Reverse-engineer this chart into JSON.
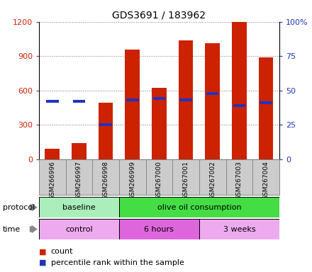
{
  "title": "GDS3691 / 183962",
  "samples": [
    "GSM266996",
    "GSM266997",
    "GSM266998",
    "GSM266999",
    "GSM267000",
    "GSM267001",
    "GSM267002",
    "GSM267003",
    "GSM267004"
  ],
  "count_values": [
    90,
    140,
    490,
    960,
    620,
    1040,
    1010,
    1200,
    890
  ],
  "percentile_values": [
    42,
    42,
    25,
    43,
    44,
    43,
    48,
    39,
    41
  ],
  "left_yticks": [
    0,
    300,
    600,
    900,
    1200
  ],
  "right_yticks": [
    0,
    25,
    50,
    75,
    100
  ],
  "right_ylabels": [
    "0",
    "25",
    "50",
    "75",
    "100%"
  ],
  "bar_color": "#cc2200",
  "percentile_color": "#2233bb",
  "protocol_groups": [
    {
      "label": "baseline",
      "start": 0,
      "end": 3,
      "color": "#aaeebb"
    },
    {
      "label": "olive oil consumption",
      "start": 3,
      "end": 9,
      "color": "#44dd44"
    }
  ],
  "time_groups": [
    {
      "label": "control",
      "start": 0,
      "end": 3,
      "color": "#eeaaee"
    },
    {
      "label": "6 hours",
      "start": 3,
      "end": 6,
      "color": "#dd66dd"
    },
    {
      "label": "3 weeks",
      "start": 6,
      "end": 9,
      "color": "#eeaaee"
    }
  ],
  "legend_count_label": "count",
  "legend_percentile_label": "percentile rank within the sample",
  "protocol_label": "protocol",
  "time_label": "time",
  "bar_width": 0.55,
  "ylim_left": [
    0,
    1200
  ],
  "ylim_right": [
    0,
    100
  ],
  "xtick_bg_color": "#cccccc",
  "xtick_border_color": "#888888"
}
